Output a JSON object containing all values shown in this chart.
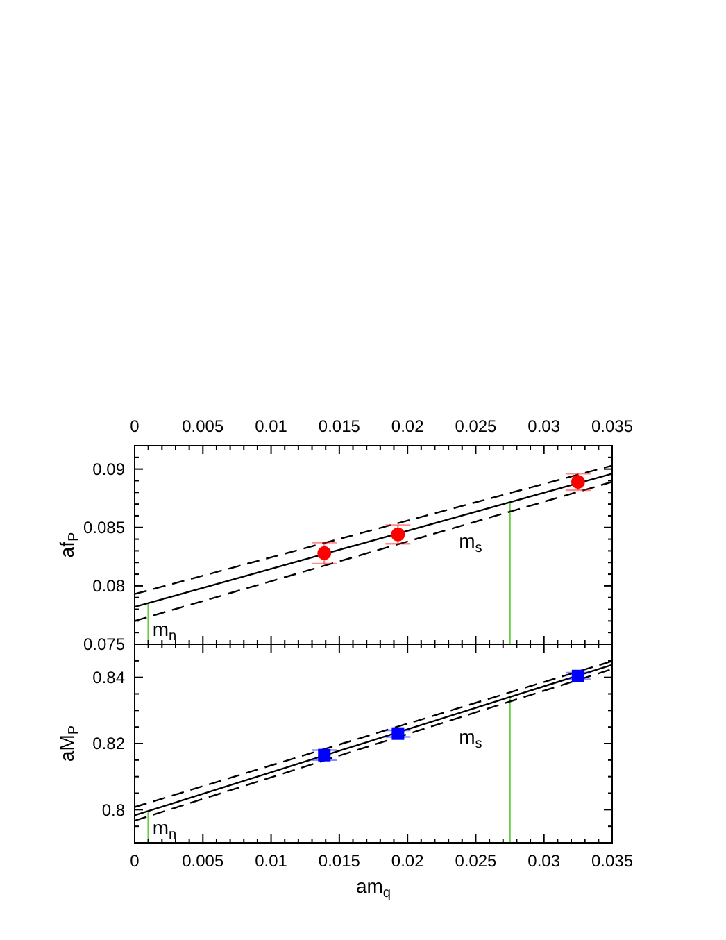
{
  "chart_data": [
    {
      "type": "scatter",
      "ylabel": "af$_{P}$",
      "xlim": [
        0,
        0.035
      ],
      "xticks": [
        0,
        {
          "value": 0.001,
          "label": null
        },
        {
          "value": 0.002,
          "label": null
        },
        {
          "value": 0.003,
          "label": null
        },
        {
          "value": 0.004,
          "label": null
        },
        0.005,
        {
          "value": 0.006,
          "label": null
        },
        {
          "value": 0.007,
          "label": null
        },
        {
          "value": 0.008,
          "label": null
        },
        {
          "value": 0.009,
          "label": null
        },
        0.01,
        {
          "value": 0.011,
          "label": null
        },
        {
          "value": 0.012,
          "label": null
        },
        {
          "value": 0.013,
          "label": null
        },
        {
          "value": 0.014,
          "label": null
        },
        0.015,
        {
          "value": 0.016,
          "label": null
        },
        {
          "value": 0.017,
          "label": null
        },
        {
          "value": 0.018,
          "label": null
        },
        {
          "value": 0.019,
          "label": null
        },
        0.02,
        {
          "value": 0.021,
          "label": null
        },
        {
          "value": 0.022,
          "label": null
        },
        {
          "value": 0.023,
          "label": null
        },
        {
          "value": 0.024,
          "label": null
        },
        0.025,
        {
          "value": 0.026,
          "label": null
        },
        {
          "value": 0.027,
          "label": null
        },
        {
          "value": 0.028,
          "label": null
        },
        {
          "value": 0.029,
          "label": null
        },
        0.03,
        {
          "value": 0.031,
          "label": null
        },
        {
          "value": 0.032,
          "label": null
        },
        {
          "value": 0.033,
          "label": null
        },
        {
          "value": 0.034,
          "label": null
        },
        0.035
      ],
      "ylim": [
        0.075,
        0.092
      ],
      "yticks": [
        0.075,
        {
          "value": 0.076,
          "label": null
        },
        {
          "value": 0.077,
          "label": null
        },
        {
          "value": 0.078,
          "label": null
        },
        {
          "value": 0.079,
          "label": null
        },
        0.08,
        {
          "value": 0.081,
          "label": null
        },
        {
          "value": 0.082,
          "label": null
        },
        {
          "value": 0.083,
          "label": null
        },
        {
          "value": 0.084,
          "label": null
        },
        0.085,
        {
          "value": 0.086,
          "label": null
        },
        {
          "value": 0.087,
          "label": null
        },
        {
          "value": 0.088,
          "label": null
        },
        {
          "value": 0.089,
          "label": null
        },
        0.09,
        {
          "value": 0.091,
          "label": null
        }
      ],
      "series": [
        {
          "type": "line",
          "color": "#000000",
          "line_style": "solid",
          "x": [
            0,
            0.035
          ],
          "values": [
            0.0782,
            0.0896
          ]
        },
        {
          "type": "line",
          "color": "#000000",
          "line_style": "dashed",
          "x": [
            0,
            0.035
          ],
          "values": [
            0.0793,
            0.0903
          ]
        },
        {
          "type": "line",
          "color": "#000000",
          "line_style": "dashed",
          "x": [
            0,
            0.035
          ],
          "values": [
            0.077,
            0.0889
          ]
        },
        {
          "color": "#ff0000",
          "marker": "circle",
          "x": [
            0.0139,
            0.0193,
            0.0325
          ],
          "values": [
            0.0828,
            0.0844,
            0.0889
          ],
          "errors": [
            0.0009,
            0.0008,
            0.0007
          ]
        }
      ],
      "ref_lines": [
        {
          "axis": "x",
          "value": 0.001,
          "label": "m$_{n}$",
          "color": "#66cc44"
        },
        {
          "axis": "x",
          "value": 0.0275,
          "label": "m$_{s}$",
          "color": "#66cc44"
        }
      ]
    },
    {
      "type": "scatter",
      "ylabel": "aM$_{P}$",
      "xlabel": "am$_{q}$",
      "xlim": [
        0,
        0.035
      ],
      "xticks": [
        0,
        {
          "value": 0.001,
          "label": null
        },
        {
          "value": 0.002,
          "label": null
        },
        {
          "value": 0.003,
          "label": null
        },
        {
          "value": 0.004,
          "label": null
        },
        0.005,
        {
          "value": 0.006,
          "label": null
        },
        {
          "value": 0.007,
          "label": null
        },
        {
          "value": 0.008,
          "label": null
        },
        {
          "value": 0.009,
          "label": null
        },
        0.01,
        {
          "value": 0.011,
          "label": null
        },
        {
          "value": 0.012,
          "label": null
        },
        {
          "value": 0.013,
          "label": null
        },
        {
          "value": 0.014,
          "label": null
        },
        0.015,
        {
          "value": 0.016,
          "label": null
        },
        {
          "value": 0.017,
          "label": null
        },
        {
          "value": 0.018,
          "label": null
        },
        {
          "value": 0.019,
          "label": null
        },
        0.02,
        {
          "value": 0.021,
          "label": null
        },
        {
          "value": 0.022,
          "label": null
        },
        {
          "value": 0.023,
          "label": null
        },
        {
          "value": 0.024,
          "label": null
        },
        0.025,
        {
          "value": 0.026,
          "label": null
        },
        {
          "value": 0.027,
          "label": null
        },
        {
          "value": 0.028,
          "label": null
        },
        {
          "value": 0.029,
          "label": null
        },
        0.03,
        {
          "value": 0.031,
          "label": null
        },
        {
          "value": 0.032,
          "label": null
        },
        {
          "value": 0.033,
          "label": null
        },
        {
          "value": 0.034,
          "label": null
        },
        0.035
      ],
      "ylim": [
        0.79,
        0.85
      ],
      "yticks": [
        {
          "value": 0.795,
          "label": null
        },
        0.8,
        {
          "value": 0.805,
          "label": null
        },
        {
          "value": 0.81,
          "label": null
        },
        {
          "value": 0.815,
          "label": null
        },
        0.82,
        {
          "value": 0.825,
          "label": null
        },
        {
          "value": 0.83,
          "label": null
        },
        {
          "value": 0.835,
          "label": null
        },
        0.84,
        {
          "value": 0.845,
          "label": null
        }
      ],
      "series": [
        {
          "type": "line",
          "color": "#000000",
          "line_style": "solid",
          "x": [
            0,
            0.035
          ],
          "values": [
            0.7983,
            0.8438
          ]
        },
        {
          "type": "line",
          "color": "#000000",
          "line_style": "dashed",
          "x": [
            0,
            0.035
          ],
          "values": [
            0.8008,
            0.8449
          ]
        },
        {
          "type": "line",
          "color": "#000000",
          "line_style": "dashed",
          "x": [
            0,
            0.035
          ],
          "values": [
            0.7967,
            0.8425
          ]
        },
        {
          "color": "#0000ff",
          "marker": "square",
          "x": [
            0.0139,
            0.0193,
            0.0325
          ],
          "values": [
            0.8165,
            0.823,
            0.8404
          ],
          "errors": [
            0.0015,
            0.001,
            0.001
          ]
        }
      ],
      "ref_lines": [
        {
          "axis": "x",
          "value": 0.001,
          "label": "m$_{n}$",
          "color": "#66cc44"
        },
        {
          "axis": "x",
          "value": 0.0275,
          "label": "m$_{s}$",
          "color": "#66cc44"
        }
      ]
    }
  ]
}
